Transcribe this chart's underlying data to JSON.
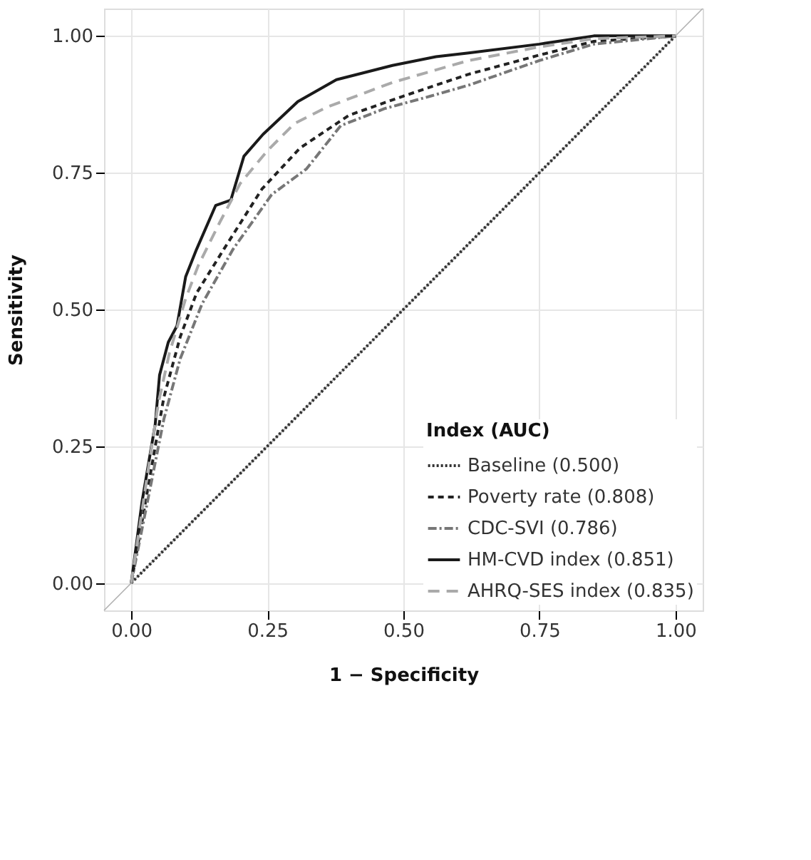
{
  "chart_data": {
    "type": "line",
    "xlabel": "1 − Specificity",
    "ylabel": "Sensitivity",
    "legend_title": "Index (AUC)",
    "xlim": [
      -0.05,
      1.05
    ],
    "ylim": [
      -0.05,
      1.05
    ],
    "xticks": [
      {
        "value": 0,
        "label": "0.00"
      },
      {
        "value": 0.25,
        "label": "0.25"
      },
      {
        "value": 0.5,
        "label": "0.50"
      },
      {
        "value": 0.75,
        "label": "0.75"
      },
      {
        "value": 1,
        "label": "1.00"
      }
    ],
    "yticks": [
      {
        "value": 0,
        "label": "0.00"
      },
      {
        "value": 0.25,
        "label": "0.25"
      },
      {
        "value": 0.5,
        "label": "0.50"
      },
      {
        "value": 0.75,
        "label": "0.75"
      },
      {
        "value": 1,
        "label": "1.00"
      }
    ],
    "grid": true,
    "legend": "bottom right",
    "marker": "none",
    "series": [
      {
        "name": "Baseline (0.500)",
        "color": "#333333",
        "line_style": "dotted",
        "x": [
          0,
          1
        ],
        "values": [
          0,
          1
        ]
      },
      {
        "name": "Poverty rate (0.808)",
        "color": "#222222",
        "line_style": "dashed",
        "x": [
          0,
          0.03,
          0.06,
          0.09,
          0.12,
          0.17,
          0.24,
          0.31,
          0.4,
          0.5,
          0.62,
          0.75,
          0.85,
          1
        ],
        "values": [
          0,
          0.17,
          0.34,
          0.45,
          0.53,
          0.61,
          0.72,
          0.795,
          0.855,
          0.89,
          0.93,
          0.965,
          0.99,
          1
        ]
      },
      {
        "name": "CDC-SVI (0.786)",
        "color": "#777777",
        "line_style": "dashdot",
        "x": [
          0,
          0.03,
          0.06,
          0.09,
          0.13,
          0.187,
          0.258,
          0.322,
          0.385,
          0.465,
          0.55,
          0.62,
          0.75,
          0.85,
          1
        ],
        "values": [
          0,
          0.15,
          0.3,
          0.41,
          0.51,
          0.61,
          0.71,
          0.757,
          0.836,
          0.867,
          0.89,
          0.91,
          0.955,
          0.985,
          1
        ]
      },
      {
        "name": "HM-CVD index (0.851)",
        "color": "#1a1a1a",
        "line_style": "solid",
        "x": [
          0,
          0.02,
          0.044,
          0.052,
          0.068,
          0.084,
          0.1,
          0.12,
          0.155,
          0.183,
          0.207,
          0.242,
          0.306,
          0.377,
          0.48,
          0.56,
          0.62,
          0.75,
          0.85,
          1
        ],
        "values": [
          0,
          0.15,
          0.29,
          0.38,
          0.44,
          0.47,
          0.56,
          0.61,
          0.69,
          0.7,
          0.78,
          0.82,
          0.88,
          0.92,
          0.946,
          0.962,
          0.969,
          0.985,
          1,
          1
        ]
      },
      {
        "name": "AHRQ-SES index (0.835)",
        "color": "#aaaaaa",
        "line_style": "longdash",
        "x": [
          0,
          0.03,
          0.05,
          0.07,
          0.1,
          0.123,
          0.163,
          0.2,
          0.25,
          0.3,
          0.36,
          0.48,
          0.62,
          0.75,
          0.85,
          1
        ],
        "values": [
          0,
          0.2,
          0.33,
          0.42,
          0.52,
          0.58,
          0.66,
          0.73,
          0.79,
          0.84,
          0.87,
          0.915,
          0.955,
          0.98,
          0.995,
          1
        ]
      },
      {
        "color": "#b0b0b0",
        "line_style": "solid",
        "x": [
          -0.05,
          1.05
        ],
        "values": [
          -0.05,
          1.05
        ]
      }
    ]
  }
}
